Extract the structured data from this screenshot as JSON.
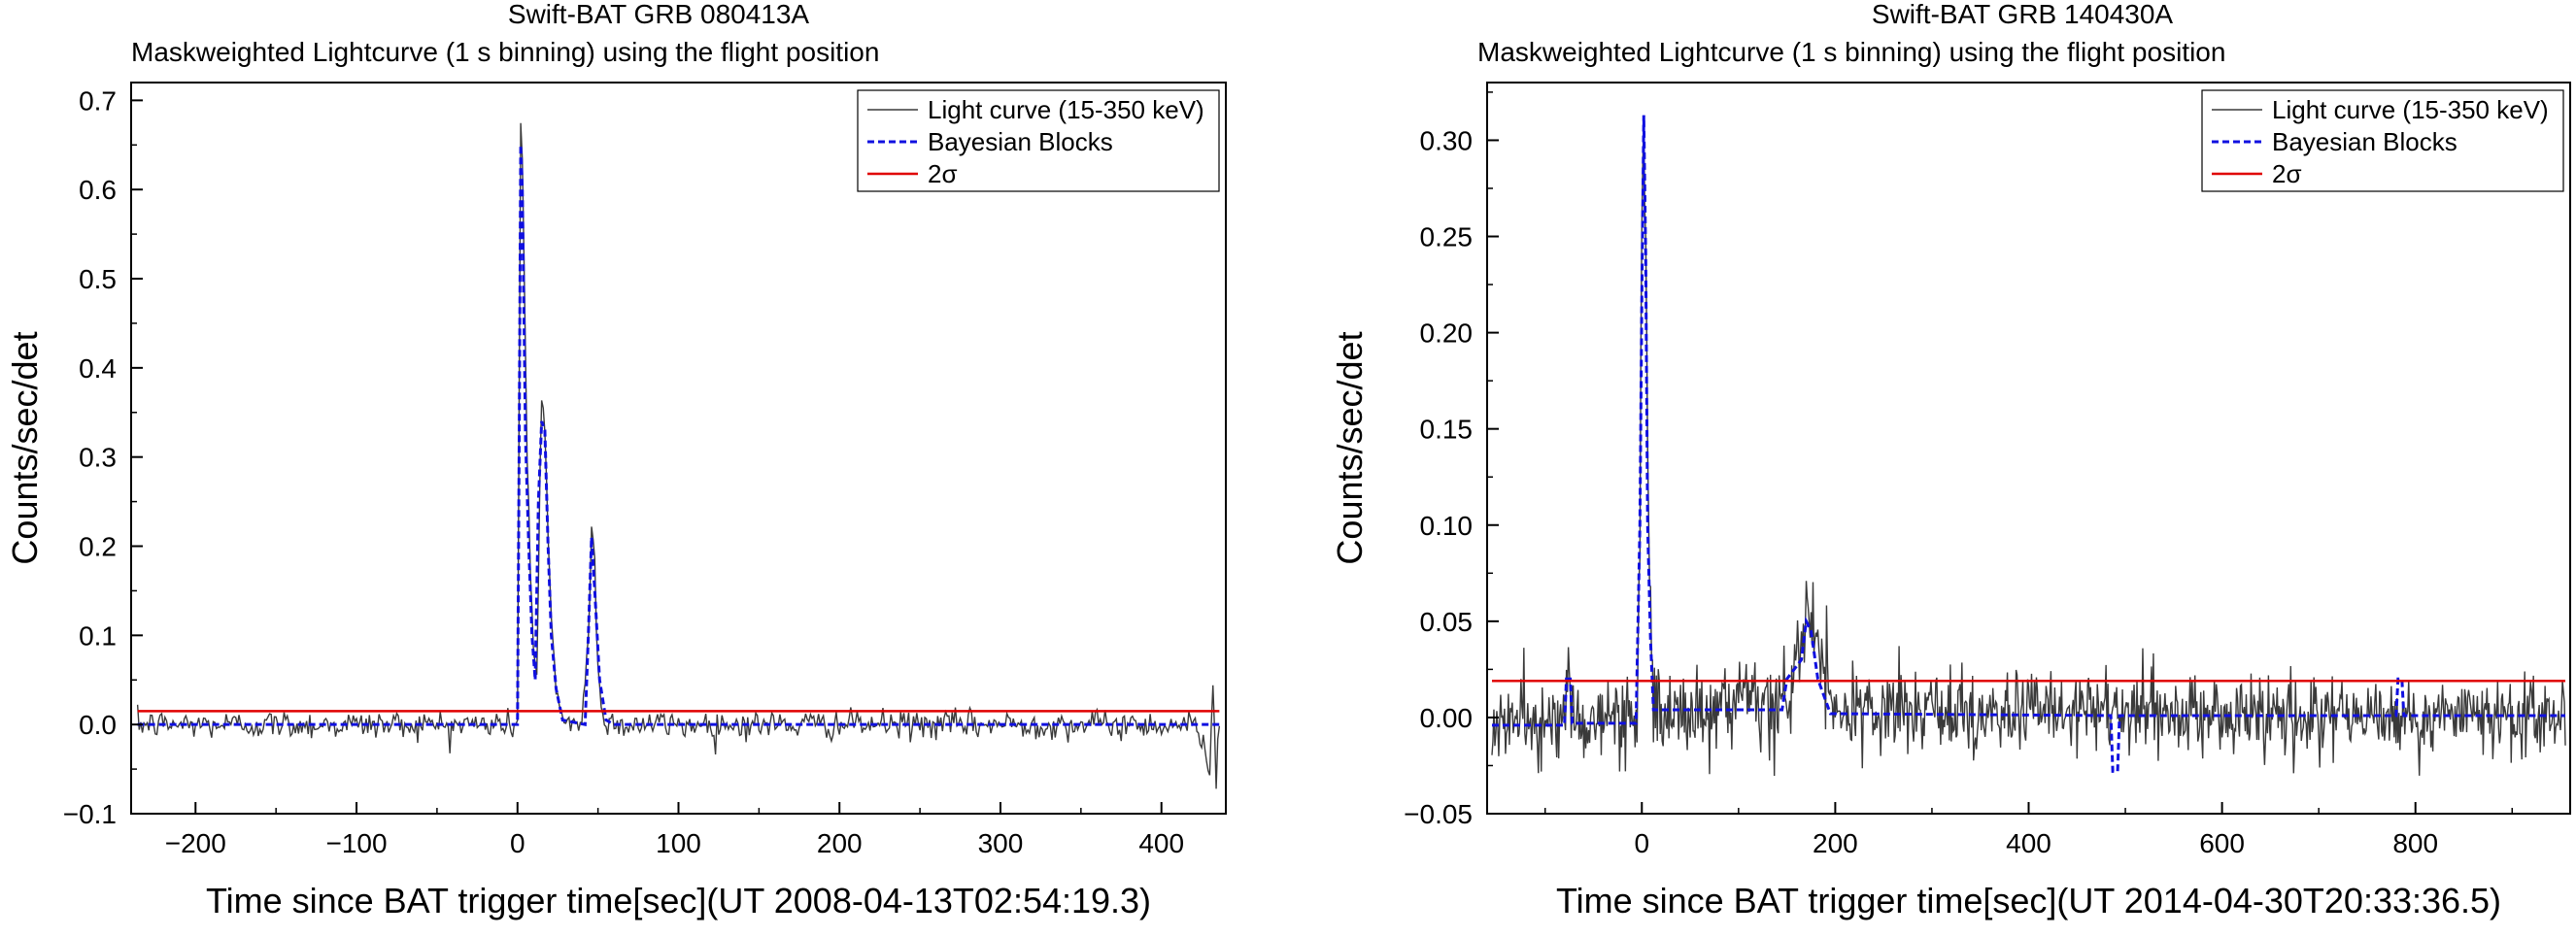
{
  "chart_data": [
    {
      "type": "line",
      "title": "Swift-BAT GRB 080413A",
      "subtitle": "Maskweighted Lightcurve (1 s binning) using the flight position",
      "xlabel": "Time since BAT trigger time[sec](UT 2008-04-13T02:54:19.3)",
      "ylabel": "Counts/sec/det",
      "xlim": [
        -240,
        440
      ],
      "ylim": [
        -0.1,
        0.72
      ],
      "xticks": [
        -200,
        -100,
        0,
        100,
        200,
        300,
        400
      ],
      "xtick_labels": [
        "−200",
        "−100",
        "0",
        "100",
        "200",
        "300",
        "400"
      ],
      "yticks": [
        -0.1,
        0.0,
        0.1,
        0.2,
        0.3,
        0.4,
        0.5,
        0.6,
        0.7
      ],
      "ytick_labels": [
        "−0.1",
        "0.0",
        "0.1",
        "0.2",
        "0.3",
        "0.4",
        "0.5",
        "0.6",
        "0.7"
      ],
      "legend_position": "top-right",
      "legend": [
        "Light curve (15-350 keV)",
        "Bayesian Blocks",
        "2σ"
      ],
      "colors": {
        "light_curve": "#3a3a3a",
        "bayesian": "#1010e0",
        "sigma": "#e00000"
      },
      "series": [
        {
          "name": "Light curve (15-350 keV)",
          "kind": "noisy",
          "noise_std": 0.008,
          "noise_x_range": [
            -236,
            436
          ],
          "points": [
            [
              -236,
              0.0
            ],
            [
              0,
              0.0
            ],
            [
              1,
              0.35
            ],
            [
              2,
              0.675
            ],
            [
              3,
              0.64
            ],
            [
              6,
              0.3
            ],
            [
              8,
              0.18
            ],
            [
              10,
              0.08
            ],
            [
              12,
              0.05
            ],
            [
              14,
              0.28
            ],
            [
              15,
              0.36
            ],
            [
              17,
              0.33
            ],
            [
              19,
              0.2
            ],
            [
              21,
              0.12
            ],
            [
              23,
              0.06
            ],
            [
              26,
              0.02
            ],
            [
              30,
              0.005
            ],
            [
              40,
              0.0
            ],
            [
              44,
              0.1
            ],
            [
              46,
              0.215
            ],
            [
              48,
              0.18
            ],
            [
              50,
              0.06
            ],
            [
              53,
              0.01
            ],
            [
              60,
              0.0
            ],
            [
              420,
              0.0
            ],
            [
              430,
              -0.04
            ],
            [
              432,
              0.05
            ],
            [
              434,
              -0.06
            ],
            [
              436,
              0.0
            ]
          ]
        },
        {
          "name": "Bayesian Blocks",
          "points": [
            [
              -236,
              0.0
            ],
            [
              0,
              0.0
            ],
            [
              1,
              0.3
            ],
            [
              2,
              0.65
            ],
            [
              3,
              0.6
            ],
            [
              5,
              0.32
            ],
            [
              7,
              0.2
            ],
            [
              9,
              0.1
            ],
            [
              11,
              0.05
            ],
            [
              13,
              0.25
            ],
            [
              15,
              0.34
            ],
            [
              17,
              0.33
            ],
            [
              19,
              0.2
            ],
            [
              21,
              0.1
            ],
            [
              24,
              0.04
            ],
            [
              28,
              0.005
            ],
            [
              42,
              0.0
            ],
            [
              44,
              0.1
            ],
            [
              46,
              0.21
            ],
            [
              48,
              0.15
            ],
            [
              51,
              0.05
            ],
            [
              55,
              0.005
            ],
            [
              60,
              0.0
            ],
            [
              436,
              0.0
            ]
          ]
        },
        {
          "name": "2σ",
          "points": [
            [
              -236,
              0.015
            ],
            [
              436,
              0.015
            ]
          ]
        }
      ]
    },
    {
      "type": "line",
      "title": "Swift-BAT GRB 140430A",
      "subtitle": "Maskweighted Lightcurve (1 s binning) using the flight position",
      "xlabel": "Time since BAT trigger time[sec](UT 2014-04-30T20:33:36.5)",
      "ylabel": "Counts/sec/det",
      "xlim": [
        -160,
        960
      ],
      "ylim": [
        -0.05,
        0.33
      ],
      "xticks": [
        0,
        200,
        400,
        600,
        800
      ],
      "xtick_labels": [
        "0",
        "200",
        "400",
        "600",
        "800"
      ],
      "yticks": [
        -0.05,
        0.0,
        0.05,
        0.1,
        0.15,
        0.2,
        0.25,
        0.3
      ],
      "ytick_labels": [
        "−0.05",
        "0.00",
        "0.05",
        "0.10",
        "0.15",
        "0.20",
        "0.25",
        "0.30"
      ],
      "legend_position": "top-right",
      "legend": [
        "Light curve (15-350 keV)",
        "Bayesian Blocks",
        "2σ"
      ],
      "colors": {
        "light_curve": "#3a3a3a",
        "bayesian": "#1010e0",
        "sigma": "#e00000"
      },
      "series": [
        {
          "name": "Light curve (15-350 keV)",
          "kind": "noisy",
          "noise_std": 0.011,
          "noise_x_range": [
            -155,
            955
          ],
          "points": [
            [
              -155,
              -0.003
            ],
            [
              -80,
              -0.002
            ],
            [
              -76,
              0.022
            ],
            [
              -72,
              -0.002
            ],
            [
              -5,
              0.0
            ],
            [
              -2,
              0.1
            ],
            [
              0,
              0.25
            ],
            [
              2,
              0.315
            ],
            [
              4,
              0.25
            ],
            [
              6,
              0.12
            ],
            [
              9,
              0.05
            ],
            [
              12,
              0.01
            ],
            [
              20,
              0.002
            ],
            [
              140,
              0.005
            ],
            [
              155,
              0.015
            ],
            [
              165,
              0.04
            ],
            [
              172,
              0.06
            ],
            [
              180,
              0.04
            ],
            [
              190,
              0.015
            ],
            [
              200,
              0.003
            ],
            [
              950,
              0.0
            ]
          ]
        },
        {
          "name": "Bayesian Blocks",
          "points": [
            [
              -155,
              -0.004
            ],
            [
              -80,
              -0.004
            ],
            [
              -78,
              0.02
            ],
            [
              -74,
              0.02
            ],
            [
              -72,
              -0.003
            ],
            [
              -6,
              -0.003
            ],
            [
              -2,
              0.1
            ],
            [
              0,
              0.22
            ],
            [
              2,
              0.313
            ],
            [
              4,
              0.24
            ],
            [
              6,
              0.1
            ],
            [
              9,
              0.04
            ],
            [
              12,
              0.004
            ],
            [
              145,
              0.004
            ],
            [
              150,
              0.02
            ],
            [
              165,
              0.03
            ],
            [
              170,
              0.05
            ],
            [
              175,
              0.045
            ],
            [
              182,
              0.02
            ],
            [
              195,
              0.002
            ],
            [
              485,
              0.001
            ],
            [
              487,
              -0.028
            ],
            [
              492,
              -0.028
            ],
            [
              494,
              0.001
            ],
            [
              780,
              0.001
            ],
            [
              782,
              0.02
            ],
            [
              786,
              0.02
            ],
            [
              788,
              0.001
            ],
            [
              955,
              0.001
            ]
          ]
        },
        {
          "name": "2σ",
          "points": [
            [
              -155,
              0.019
            ],
            [
              955,
              0.019
            ]
          ]
        }
      ]
    }
  ]
}
